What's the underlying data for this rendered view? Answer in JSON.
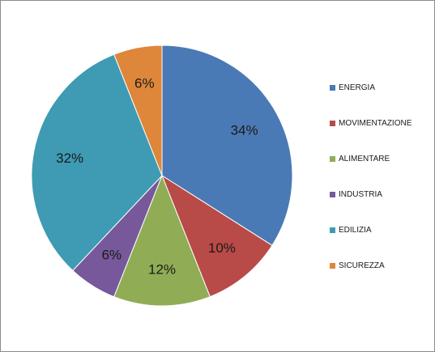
{
  "chart_data": {
    "type": "pie",
    "categories": [
      "ENERGIA",
      "MOVIMENTAZIONE",
      "ALIMENTARE",
      "INDUSTRIA",
      "EDILIZIA",
      "SICUREZZA"
    ],
    "values": [
      34,
      10,
      12,
      6,
      32,
      6
    ],
    "labels": [
      "34%",
      "10%",
      "12%",
      "6%",
      "32%",
      "6%"
    ],
    "colors": [
      "#4a7ab5",
      "#b84a48",
      "#90ad55",
      "#77599b",
      "#3e9bb3",
      "#de8639"
    ],
    "legend_position": "right",
    "title": ""
  }
}
